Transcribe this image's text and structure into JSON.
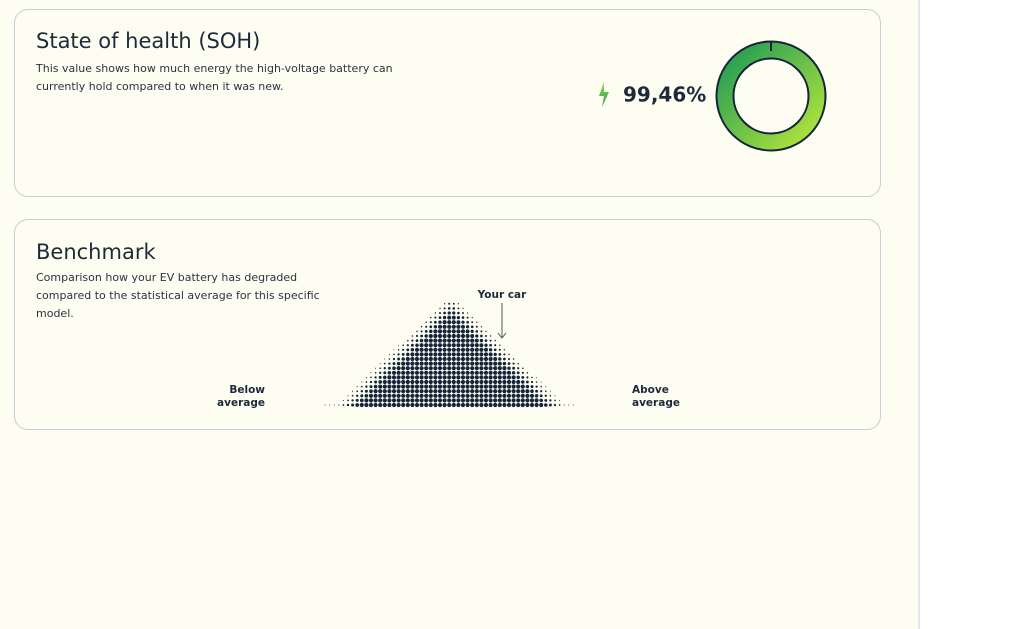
{
  "soh": {
    "title": "State of health (SOH)",
    "description": [
      "This value shows how much energy the high-voltage battery can",
      "currently hold compared to when it was new."
    ],
    "value_label": "99,46%"
  },
  "benchmark": {
    "title": "Benchmark",
    "description": [
      "Comparison how your EV battery has degraded",
      "compared to the statistical average for this specific",
      "model."
    ],
    "marker_label": "Your car",
    "below_label": [
      "Below",
      "average"
    ],
    "above_label": [
      "Above",
      "average"
    ]
  }
}
